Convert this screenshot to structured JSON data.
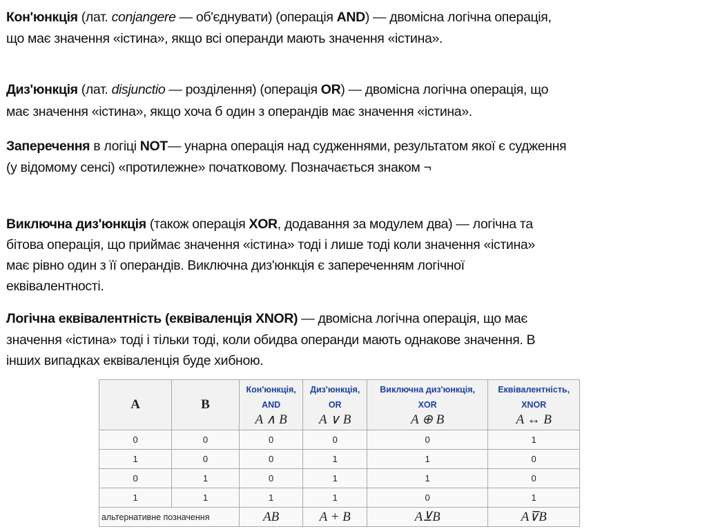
{
  "paragraphs": {
    "conjunction": [
      [
        {
          "t": "Кон'юнкція",
          "s": "b"
        },
        {
          "t": " (лат. ",
          "s": ""
        },
        {
          "t": "conjangere",
          "s": "i"
        },
        {
          "t": " — об'єднувати) (операція ",
          "s": ""
        },
        {
          "t": "AND",
          "s": "b"
        },
        {
          "t": ") — двомісна логічна операція,",
          "s": ""
        }
      ],
      [
        {
          "t": "що має значення «істина», якщо всі операнди мають значення «істина».",
          "s": ""
        }
      ]
    ],
    "disjunction": [
      [
        {
          "t": "Диз'юнкція",
          "s": "b"
        },
        {
          "t": " (лат. ",
          "s": ""
        },
        {
          "t": "disjunctio",
          "s": "i"
        },
        {
          "t": " — розділення) (операція ",
          "s": ""
        },
        {
          "t": "OR",
          "s": "b"
        },
        {
          "t": ") — двомісна логічна операція, що",
          "s": ""
        }
      ],
      [
        {
          "t": "має значення «істина», якщо хоча б один з операндів має значення «істина».",
          "s": ""
        }
      ]
    ],
    "negation": [
      [
        {
          "t": "Заперечення",
          "s": "b"
        },
        {
          "t": " в логіці ",
          "s": ""
        },
        {
          "t": "NOT",
          "s": "b"
        },
        {
          "t": "— унарна операція над судженнями, результатом якої є судження",
          "s": ""
        }
      ],
      [
        {
          "t": "(у відомому сенсі) «протилежне» початковому. Позначається знаком ¬",
          "s": ""
        }
      ]
    ],
    "xor": [
      [
        {
          "t": "Виключна диз'юнкція",
          "s": "b"
        },
        {
          "t": " (також операція ",
          "s": ""
        },
        {
          "t": "XOR",
          "s": "b"
        },
        {
          "t": ", додавання за модулем два) — логічна та",
          "s": ""
        }
      ],
      [
        {
          "t": "бітова операція, що приймає значення «істина» тоді і лише тоді коли значення «істина»",
          "s": ""
        }
      ],
      [
        {
          "t": "має рівно один з її операндів. Виключна диз'юнкція є запереченням логічної",
          "s": ""
        }
      ],
      [
        {
          "t": "еквівалентності.",
          "s": ""
        }
      ]
    ],
    "xnor": [
      [
        {
          "t": "Логічна еквівалентність (еквіваленція XNOR)",
          "s": "b"
        },
        {
          "t": " — двомісна логічна операція, що має",
          "s": ""
        }
      ],
      [
        {
          "t": "значення «істина» тоді і тільки тоді, коли обидва операнди мають однакове значення. В",
          "s": ""
        }
      ],
      [
        {
          "t": "інших випадках еквіваленція буде хибною.",
          "s": ""
        }
      ]
    ]
  },
  "table": {
    "headers": [
      {
        "name": "",
        "op": "",
        "math": "A"
      },
      {
        "name": "",
        "op": "",
        "math": "B"
      },
      {
        "name": "Кон'юнкція,",
        "op": "AND",
        "math": "A ∧ B"
      },
      {
        "name": "Диз'юнкція,",
        "op": "OR",
        "math": "A ∨ B"
      },
      {
        "name": "Виключна диз'юнкція,",
        "op": "XOR",
        "math": "A ⊕ B"
      },
      {
        "name": "Еквівалентність,",
        "op": "XNOR",
        "math": "A ↔ B"
      }
    ],
    "rows": [
      [
        "0",
        "0",
        "0",
        "0",
        "0",
        "1"
      ],
      [
        "1",
        "0",
        "0",
        "1",
        "1",
        "0"
      ],
      [
        "0",
        "1",
        "0",
        "1",
        "1",
        "0"
      ],
      [
        "1",
        "1",
        "1",
        "1",
        "0",
        "1"
      ]
    ],
    "alt_label": "альтернативне позначення",
    "alt": [
      "AB",
      "A + B",
      "A⊻B",
      "A⊽B"
    ],
    "header_link_color": "#1a3fa0"
  }
}
